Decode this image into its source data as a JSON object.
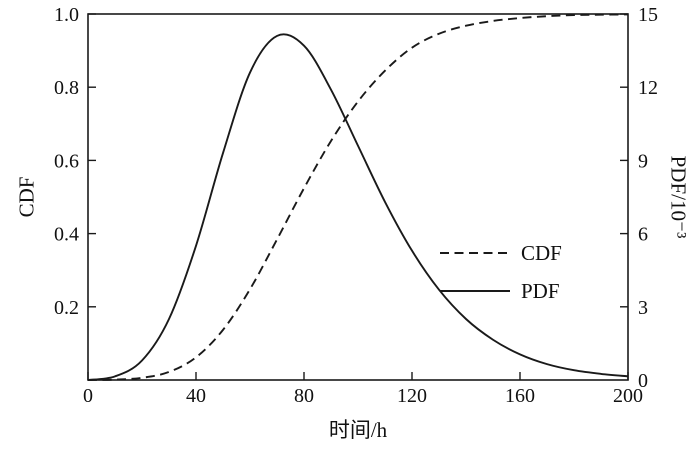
{
  "colors": {
    "line": "#1a1a1a",
    "text": "#111111",
    "background": "#ffffff"
  },
  "chart_data": {
    "type": "line",
    "title": "",
    "xlabel": "时间/h",
    "left_ylabel": "CDF",
    "right_ylabel": "PDF/10⁻³",
    "xlim": [
      0,
      200
    ],
    "left_ylim": [
      0,
      1.0
    ],
    "right_ylim": [
      0,
      15
    ],
    "x_ticks": {
      "values": [
        0,
        40,
        80,
        120,
        160,
        200
      ],
      "labels": [
        "0",
        "40",
        "80",
        "120",
        "160",
        "200"
      ]
    },
    "left_y_ticks": {
      "values": [
        0.2,
        0.4,
        0.6,
        0.8,
        1.0
      ],
      "labels": [
        "0.2",
        "0.4",
        "0.6",
        "0.8",
        "1.0"
      ]
    },
    "right_y_ticks": {
      "values": [
        0,
        3,
        6,
        9,
        12,
        15
      ],
      "labels": [
        "0",
        "3",
        "6",
        "9",
        "12",
        "15"
      ]
    },
    "grid": false,
    "legend_position": "center-right",
    "legend": [
      {
        "label": "CDF",
        "style": "dashed"
      },
      {
        "label": "PDF",
        "style": "solid"
      }
    ],
    "x": [
      0,
      10,
      20,
      30,
      40,
      50,
      60,
      70,
      80,
      90,
      100,
      110,
      120,
      130,
      140,
      150,
      160,
      170,
      180,
      190,
      200
    ],
    "series": [
      {
        "name": "CDF",
        "axis": "left",
        "style": "dashed",
        "values": [
          0,
          0.001,
          0.006,
          0.022,
          0.062,
          0.137,
          0.248,
          0.384,
          0.524,
          0.653,
          0.761,
          0.845,
          0.908,
          0.946,
          0.968,
          0.981,
          0.989,
          0.994,
          0.997,
          0.998,
          0.999
        ]
      },
      {
        "name": "PDF",
        "axis": "right",
        "style": "solid",
        "values": [
          0,
          0.15,
          0.8,
          2.5,
          5.5,
          9.3,
          12.6,
          14.1,
          13.7,
          11.9,
          9.6,
          7.3,
          5.3,
          3.7,
          2.5,
          1.65,
          1.05,
          0.65,
          0.4,
          0.25,
          0.15
        ]
      }
    ]
  }
}
